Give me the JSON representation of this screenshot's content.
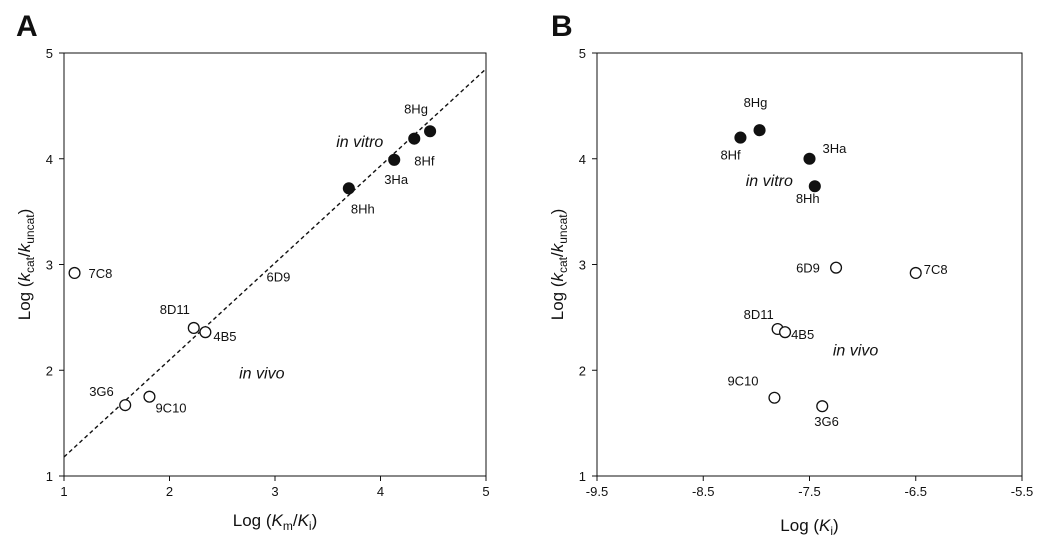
{
  "chart_data": [
    {
      "type": "scatter",
      "panel_label": "A",
      "xlabel": {
        "prefix": "Log (",
        "var1": "K",
        "sub1": "m",
        "sep": "/",
        "var2": "K",
        "sub2": "i",
        "suffix": ")"
      },
      "ylabel": {
        "prefix": "Log (",
        "var1": "k",
        "sub1": "cat",
        "sep": "/",
        "var2": "k",
        "sub2": "uncat",
        "suffix": ")"
      },
      "xlim": [
        1,
        5
      ],
      "ylim": [
        1,
        5
      ],
      "x_ticks": [
        "1",
        "2",
        "3",
        "4",
        "5"
      ],
      "y_ticks": [
        "1",
        "2",
        "3",
        "4",
        "5"
      ],
      "grid": false,
      "fit_line": {
        "style": "dashed",
        "x": [
          1,
          5
        ],
        "y": [
          1.18,
          4.85
        ]
      },
      "series": [
        {
          "marker": "filled-circle",
          "points": [
            {
              "label": "8Hg",
              "x": 4.47,
              "y": 4.26
            },
            {
              "label": "8Hf",
              "x": 4.32,
              "y": 4.19
            },
            {
              "label": "3Ha",
              "x": 4.13,
              "y": 3.99
            },
            {
              "label": "8Hh",
              "x": 3.7,
              "y": 3.72
            }
          ]
        },
        {
          "marker": "open-circle",
          "points": [
            {
              "label": "7C8",
              "x": 1.1,
              "y": 2.92
            },
            {
              "label": "8D11",
              "x": 2.23,
              "y": 2.4
            },
            {
              "label": "4B5",
              "x": 2.34,
              "y": 2.36
            },
            {
              "label": "3G6",
              "x": 1.58,
              "y": 1.67
            },
            {
              "label": "9C10",
              "x": 1.81,
              "y": 1.75
            }
          ]
        }
      ],
      "annotations": [
        {
          "text": "6D9",
          "x": 2.92,
          "y": 2.84
        },
        {
          "text": "in vitro",
          "x": 3.58,
          "y": 4.11
        },
        {
          "text": "in vivo",
          "x": 2.66,
          "y": 1.92
        }
      ]
    },
    {
      "type": "scatter",
      "panel_label": "B",
      "xlabel": {
        "prefix": "Log (",
        "var1": "K",
        "sub1": "i",
        "suffix": ")"
      },
      "ylabel": {
        "prefix": "Log (",
        "var1": "k",
        "sub1": "cat",
        "sep": "/",
        "var2": "k",
        "sub2": "uncat",
        "suffix": ")"
      },
      "xlim": [
        -9.5,
        -5.5
      ],
      "ylim": [
        1,
        5
      ],
      "x_ticks": [
        "-9.5",
        "-8.5",
        "-7.5",
        "-6.5",
        "-5.5"
      ],
      "y_ticks": [
        "1",
        "2",
        "3",
        "4",
        "5"
      ],
      "grid": false,
      "series": [
        {
          "marker": "filled-circle",
          "points": [
            {
              "label": "8Hg",
              "x": -7.97,
              "y": 4.27
            },
            {
              "label": "8Hf",
              "x": -8.15,
              "y": 4.2
            },
            {
              "label": "3Ha",
              "x": -7.5,
              "y": 4.0
            },
            {
              "label": "8Hh",
              "x": -7.45,
              "y": 3.74
            }
          ]
        },
        {
          "marker": "open-circle",
          "points": [
            {
              "label": "6D9",
              "x": -7.25,
              "y": 2.97
            },
            {
              "label": "7C8",
              "x": -6.5,
              "y": 2.92
            },
            {
              "label": "8D11",
              "x": -7.8,
              "y": 2.39
            },
            {
              "label": "4B5",
              "x": -7.73,
              "y": 2.36
            },
            {
              "label": "9C10",
              "x": -7.83,
              "y": 1.74
            },
            {
              "label": "3G6",
              "x": -7.38,
              "y": 1.66
            }
          ]
        }
      ],
      "annotations": [
        {
          "text": "in vitro",
          "x": -8.1,
          "y": 3.74
        },
        {
          "text": "in vivo",
          "x": -7.28,
          "y": 2.14
        }
      ]
    }
  ]
}
